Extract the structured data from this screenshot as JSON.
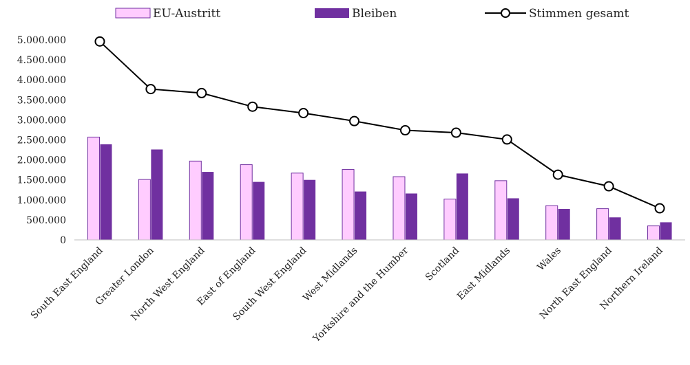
{
  "chart_data": {
    "type": "bar",
    "categories": [
      "South East England",
      "Greater London",
      "North West England",
      "East of England",
      "South West England",
      "West Midlands",
      "Yorkshire and the Humber",
      "Scotland",
      "East Midlands",
      "Wales",
      "North East England",
      "Northern Ireland"
    ],
    "series": [
      {
        "name": "EU-Austritt",
        "type": "bar",
        "color": "#ffccff",
        "stroke": "#7030a0",
        "values": [
          2570000,
          1510000,
          1970000,
          1880000,
          1670000,
          1760000,
          1580000,
          1020000,
          1480000,
          855000,
          780000,
          350000
        ]
      },
      {
        "name": "Bleiben",
        "type": "bar",
        "color": "#7030a0",
        "values": [
          2390000,
          2260000,
          1700000,
          1450000,
          1500000,
          1210000,
          1160000,
          1660000,
          1040000,
          773000,
          563000,
          440000
        ]
      },
      {
        "name": "Stimmen gesamt",
        "type": "line",
        "color": "#000000",
        "marker": "circle-open",
        "values": [
          4960000,
          3770000,
          3670000,
          3330000,
          3170000,
          2970000,
          2740000,
          2680000,
          2510000,
          1630000,
          1340000,
          790000
        ]
      }
    ],
    "ylim": [
      0,
      5000000
    ],
    "yticks": [
      "0",
      "500.000",
      "1.000.000",
      "1.500.000",
      "2.000.000",
      "2.500.000",
      "3.000.000",
      "3.500.000",
      "4.000.000",
      "4.500.000",
      "5.000.000"
    ],
    "grid": false,
    "legend_position": "top"
  }
}
